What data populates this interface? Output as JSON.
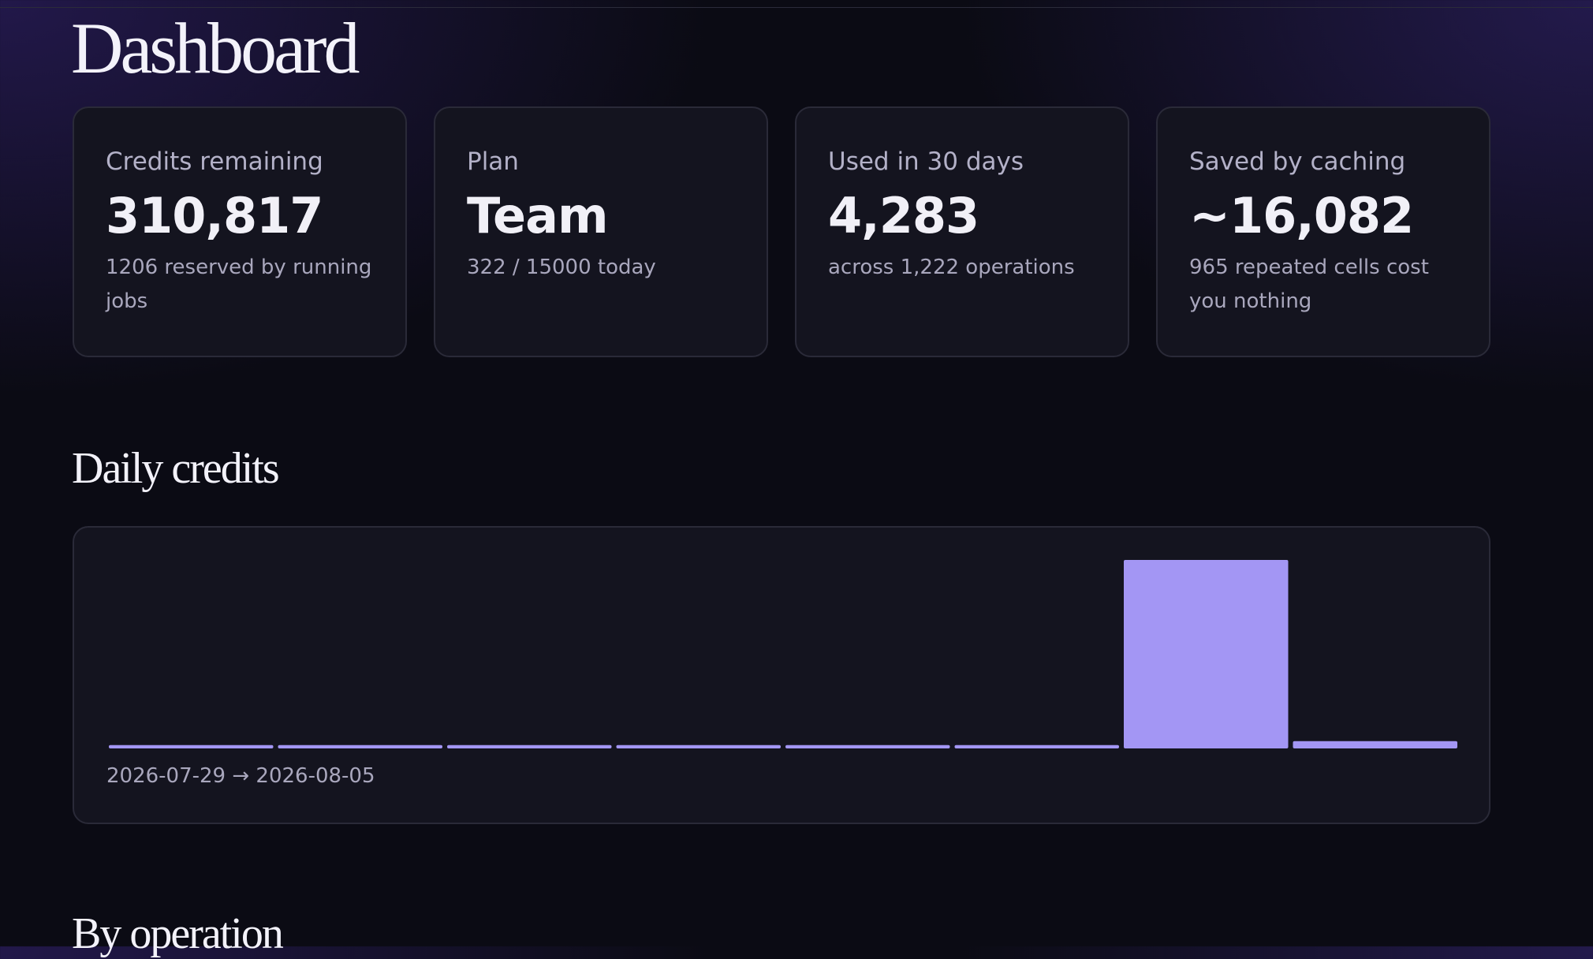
{
  "header": {
    "title": "Dashboard"
  },
  "cards": [
    {
      "label": "Credits remaining",
      "value": "310,817",
      "note": "1206 reserved by running jobs"
    },
    {
      "label": "Plan",
      "value": "Team",
      "note": "322 / 15000 today"
    },
    {
      "label": "Used in 30 days",
      "value": "4,283",
      "note": "across 1,222 operations"
    },
    {
      "label": "Saved by caching",
      "value": "~16,082",
      "note": "965 repeated cells cost you nothing"
    }
  ],
  "chart_data": {
    "type": "bar",
    "title": "Daily credits",
    "values": [
      70,
      70,
      70,
      70,
      70,
      70,
      3900,
      150
    ],
    "color": "#a396f4",
    "range_label": "2026-07-29 → 2026-08-05"
  },
  "sections": {
    "next_title": "By operation"
  }
}
